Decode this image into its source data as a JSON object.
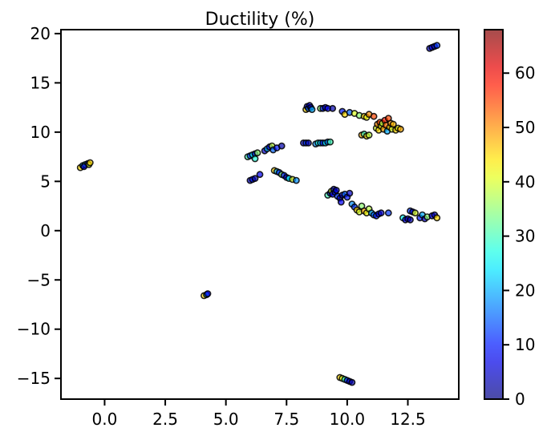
{
  "chart_data": {
    "type": "scatter",
    "title": "Ductility (%)",
    "xlabel": "",
    "ylabel": "",
    "xlim": [
      -1.8,
      14.6
    ],
    "ylim": [
      -17.1,
      20.4
    ],
    "x_ticks": [
      0.0,
      2.5,
      5.0,
      7.5,
      10.0,
      12.5
    ],
    "x_tick_labels": [
      "0.0",
      "2.5",
      "5.0",
      "7.5",
      "10.0",
      "12.5"
    ],
    "y_ticks": [
      -15,
      -10,
      -5,
      0,
      5,
      10,
      15,
      20
    ],
    "y_tick_labels": [
      "−15",
      "−10",
      "−5",
      "0",
      "5",
      "10",
      "15",
      "20"
    ],
    "colorbar": {
      "label": "",
      "range": [
        0,
        68
      ],
      "ticks": [
        0,
        10,
        20,
        30,
        40,
        50,
        60
      ],
      "tick_labels": [
        "0",
        "10",
        "20",
        "30",
        "40",
        "50",
        "60"
      ],
      "colormap": "jet",
      "alpha": 0.7
    },
    "grid": false,
    "points": [
      {
        "x": -1.0,
        "y": 6.4,
        "c": 45
      },
      {
        "x": -0.9,
        "y": 6.6,
        "c": 20
      },
      {
        "x": -0.8,
        "y": 6.7,
        "c": 30
      },
      {
        "x": -0.7,
        "y": 6.8,
        "c": 10
      },
      {
        "x": -0.65,
        "y": 6.7,
        "c": 40
      },
      {
        "x": -0.6,
        "y": 6.9,
        "c": 45
      },
      {
        "x": -0.85,
        "y": 6.5,
        "c": 5
      },
      {
        "x": 4.1,
        "y": -6.6,
        "c": 45
      },
      {
        "x": 4.2,
        "y": -6.5,
        "c": 20
      },
      {
        "x": 4.25,
        "y": -6.4,
        "c": 8
      },
      {
        "x": 5.9,
        "y": 7.5,
        "c": 30
      },
      {
        "x": 6.0,
        "y": 7.6,
        "c": 12
      },
      {
        "x": 6.1,
        "y": 7.7,
        "c": 25
      },
      {
        "x": 6.2,
        "y": 7.8,
        "c": 5
      },
      {
        "x": 6.3,
        "y": 7.9,
        "c": 35
      },
      {
        "x": 6.2,
        "y": 7.3,
        "c": 28
      },
      {
        "x": 6.6,
        "y": 8.1,
        "c": 5
      },
      {
        "x": 6.7,
        "y": 8.3,
        "c": 20
      },
      {
        "x": 6.8,
        "y": 8.5,
        "c": 8
      },
      {
        "x": 6.9,
        "y": 8.6,
        "c": 38
      },
      {
        "x": 6.95,
        "y": 8.2,
        "c": 15
      },
      {
        "x": 7.1,
        "y": 8.4,
        "c": 10
      },
      {
        "x": 7.3,
        "y": 8.6,
        "c": 3
      },
      {
        "x": 6.0,
        "y": 5.1,
        "c": 5
      },
      {
        "x": 6.1,
        "y": 5.2,
        "c": 10
      },
      {
        "x": 6.2,
        "y": 5.3,
        "c": 3
      },
      {
        "x": 6.4,
        "y": 5.7,
        "c": 8
      },
      {
        "x": 7.0,
        "y": 6.1,
        "c": 45
      },
      {
        "x": 7.1,
        "y": 6.0,
        "c": 20
      },
      {
        "x": 7.2,
        "y": 5.9,
        "c": 12
      },
      {
        "x": 7.3,
        "y": 5.7,
        "c": 35
      },
      {
        "x": 7.4,
        "y": 5.6,
        "c": 10
      },
      {
        "x": 7.5,
        "y": 5.4,
        "c": 5
      },
      {
        "x": 7.6,
        "y": 5.3,
        "c": 25
      },
      {
        "x": 7.75,
        "y": 5.2,
        "c": 40
      },
      {
        "x": 7.9,
        "y": 5.1,
        "c": 18
      },
      {
        "x": 8.2,
        "y": 8.9,
        "c": 5
      },
      {
        "x": 8.3,
        "y": 8.9,
        "c": 12
      },
      {
        "x": 8.4,
        "y": 8.9,
        "c": 3
      },
      {
        "x": 8.7,
        "y": 8.8,
        "c": 18
      },
      {
        "x": 8.8,
        "y": 8.9,
        "c": 28
      },
      {
        "x": 8.9,
        "y": 8.9,
        "c": 20
      },
      {
        "x": 9.0,
        "y": 8.9,
        "c": 10
      },
      {
        "x": 9.1,
        "y": 8.9,
        "c": 25
      },
      {
        "x": 9.2,
        "y": 9.0,
        "c": 15
      },
      {
        "x": 9.3,
        "y": 9.0,
        "c": 30
      },
      {
        "x": 8.3,
        "y": 12.3,
        "c": 45
      },
      {
        "x": 8.35,
        "y": 12.6,
        "c": 5
      },
      {
        "x": 8.4,
        "y": 12.4,
        "c": 15
      },
      {
        "x": 8.45,
        "y": 12.7,
        "c": 8
      },
      {
        "x": 8.5,
        "y": 12.5,
        "c": 3
      },
      {
        "x": 8.55,
        "y": 12.3,
        "c": 20
      },
      {
        "x": 8.9,
        "y": 12.4,
        "c": 35
      },
      {
        "x": 9.0,
        "y": 12.4,
        "c": 10
      },
      {
        "x": 9.1,
        "y": 12.5,
        "c": 5
      },
      {
        "x": 9.2,
        "y": 12.4,
        "c": 8
      },
      {
        "x": 9.4,
        "y": 12.4,
        "c": 3
      },
      {
        "x": 9.8,
        "y": 12.1,
        "c": 10
      },
      {
        "x": 9.9,
        "y": 11.8,
        "c": 45
      },
      {
        "x": 10.1,
        "y": 12.0,
        "c": 15
      },
      {
        "x": 10.3,
        "y": 11.9,
        "c": 40
      },
      {
        "x": 10.5,
        "y": 11.7,
        "c": 35
      },
      {
        "x": 10.7,
        "y": 11.6,
        "c": 45
      },
      {
        "x": 10.8,
        "y": 11.5,
        "c": 42
      },
      {
        "x": 10.9,
        "y": 11.8,
        "c": 50
      },
      {
        "x": 11.1,
        "y": 11.6,
        "c": 55
      },
      {
        "x": 10.6,
        "y": 9.7,
        "c": 48
      },
      {
        "x": 10.7,
        "y": 9.8,
        "c": 30
      },
      {
        "x": 10.8,
        "y": 9.6,
        "c": 45
      },
      {
        "x": 10.9,
        "y": 9.7,
        "c": 38
      },
      {
        "x": 11.2,
        "y": 10.4,
        "c": 40
      },
      {
        "x": 11.25,
        "y": 10.8,
        "c": 50
      },
      {
        "x": 11.3,
        "y": 10.2,
        "c": 45
      },
      {
        "x": 11.35,
        "y": 11.0,
        "c": 55
      },
      {
        "x": 11.4,
        "y": 10.6,
        "c": 42
      },
      {
        "x": 11.45,
        "y": 10.9,
        "c": 38
      },
      {
        "x": 11.5,
        "y": 10.3,
        "c": 48
      },
      {
        "x": 11.55,
        "y": 11.2,
        "c": 58
      },
      {
        "x": 11.6,
        "y": 10.7,
        "c": 52
      },
      {
        "x": 11.65,
        "y": 10.1,
        "c": 20
      },
      {
        "x": 11.7,
        "y": 11.4,
        "c": 55
      },
      {
        "x": 11.75,
        "y": 10.5,
        "c": 45
      },
      {
        "x": 11.8,
        "y": 10.9,
        "c": 50
      },
      {
        "x": 11.85,
        "y": 10.3,
        "c": 40
      },
      {
        "x": 11.9,
        "y": 10.8,
        "c": 47
      },
      {
        "x": 12.0,
        "y": 10.2,
        "c": 45
      },
      {
        "x": 12.1,
        "y": 10.4,
        "c": 42
      },
      {
        "x": 12.2,
        "y": 10.3,
        "c": 48
      },
      {
        "x": 9.2,
        "y": 3.6,
        "c": 30
      },
      {
        "x": 9.3,
        "y": 3.8,
        "c": 5
      },
      {
        "x": 9.35,
        "y": 4.0,
        "c": 40
      },
      {
        "x": 9.4,
        "y": 3.7,
        "c": 8
      },
      {
        "x": 9.45,
        "y": 4.2,
        "c": 3
      },
      {
        "x": 9.5,
        "y": 3.9,
        "c": 10
      },
      {
        "x": 9.55,
        "y": 4.1,
        "c": 5
      },
      {
        "x": 9.6,
        "y": 3.5,
        "c": 12
      },
      {
        "x": 9.7,
        "y": 3.3,
        "c": 5
      },
      {
        "x": 9.75,
        "y": 2.9,
        "c": 8
      },
      {
        "x": 9.8,
        "y": 3.6,
        "c": 3
      },
      {
        "x": 9.9,
        "y": 3.7,
        "c": 15
      },
      {
        "x": 10.0,
        "y": 3.4,
        "c": 10
      },
      {
        "x": 10.1,
        "y": 3.8,
        "c": 5
      },
      {
        "x": 10.2,
        "y": 2.7,
        "c": 18
      },
      {
        "x": 10.3,
        "y": 2.4,
        "c": 12
      },
      {
        "x": 10.4,
        "y": 2.1,
        "c": 45
      },
      {
        "x": 10.5,
        "y": 1.9,
        "c": 40
      },
      {
        "x": 10.6,
        "y": 2.5,
        "c": 35
      },
      {
        "x": 10.7,
        "y": 2.0,
        "c": 48
      },
      {
        "x": 10.8,
        "y": 1.8,
        "c": 42
      },
      {
        "x": 10.9,
        "y": 2.2,
        "c": 38
      },
      {
        "x": 11.0,
        "y": 1.8,
        "c": 20
      },
      {
        "x": 11.1,
        "y": 1.6,
        "c": 15
      },
      {
        "x": 11.2,
        "y": 1.5,
        "c": 10
      },
      {
        "x": 11.3,
        "y": 1.7,
        "c": 8
      },
      {
        "x": 11.4,
        "y": 1.8,
        "c": 5
      },
      {
        "x": 11.7,
        "y": 1.8,
        "c": 12
      },
      {
        "x": 12.3,
        "y": 1.3,
        "c": 25
      },
      {
        "x": 12.4,
        "y": 1.1,
        "c": 8
      },
      {
        "x": 12.5,
        "y": 1.2,
        "c": 5
      },
      {
        "x": 12.6,
        "y": 1.1,
        "c": 3
      },
      {
        "x": 12.6,
        "y": 2.0,
        "c": 12
      },
      {
        "x": 12.7,
        "y": 1.9,
        "c": 5
      },
      {
        "x": 12.8,
        "y": 1.8,
        "c": 40
      },
      {
        "x": 13.0,
        "y": 1.3,
        "c": 10
      },
      {
        "x": 13.1,
        "y": 1.6,
        "c": 20
      },
      {
        "x": 13.2,
        "y": 1.2,
        "c": 5
      },
      {
        "x": 13.3,
        "y": 1.4,
        "c": 35
      },
      {
        "x": 13.5,
        "y": 1.5,
        "c": 8
      },
      {
        "x": 13.6,
        "y": 1.6,
        "c": 3
      },
      {
        "x": 13.7,
        "y": 1.3,
        "c": 45
      },
      {
        "x": 13.4,
        "y": 18.5,
        "c": 5
      },
      {
        "x": 13.5,
        "y": 18.6,
        "c": 8
      },
      {
        "x": 13.6,
        "y": 18.7,
        "c": 3
      },
      {
        "x": 13.7,
        "y": 18.8,
        "c": 12
      },
      {
        "x": 9.7,
        "y": -14.9,
        "c": 45
      },
      {
        "x": 9.8,
        "y": -15.0,
        "c": 40
      },
      {
        "x": 9.9,
        "y": -15.1,
        "c": 28
      },
      {
        "x": 10.0,
        "y": -15.2,
        "c": 10
      },
      {
        "x": 10.1,
        "y": -15.3,
        "c": 5
      },
      {
        "x": 10.2,
        "y": -15.4,
        "c": 3
      }
    ]
  }
}
